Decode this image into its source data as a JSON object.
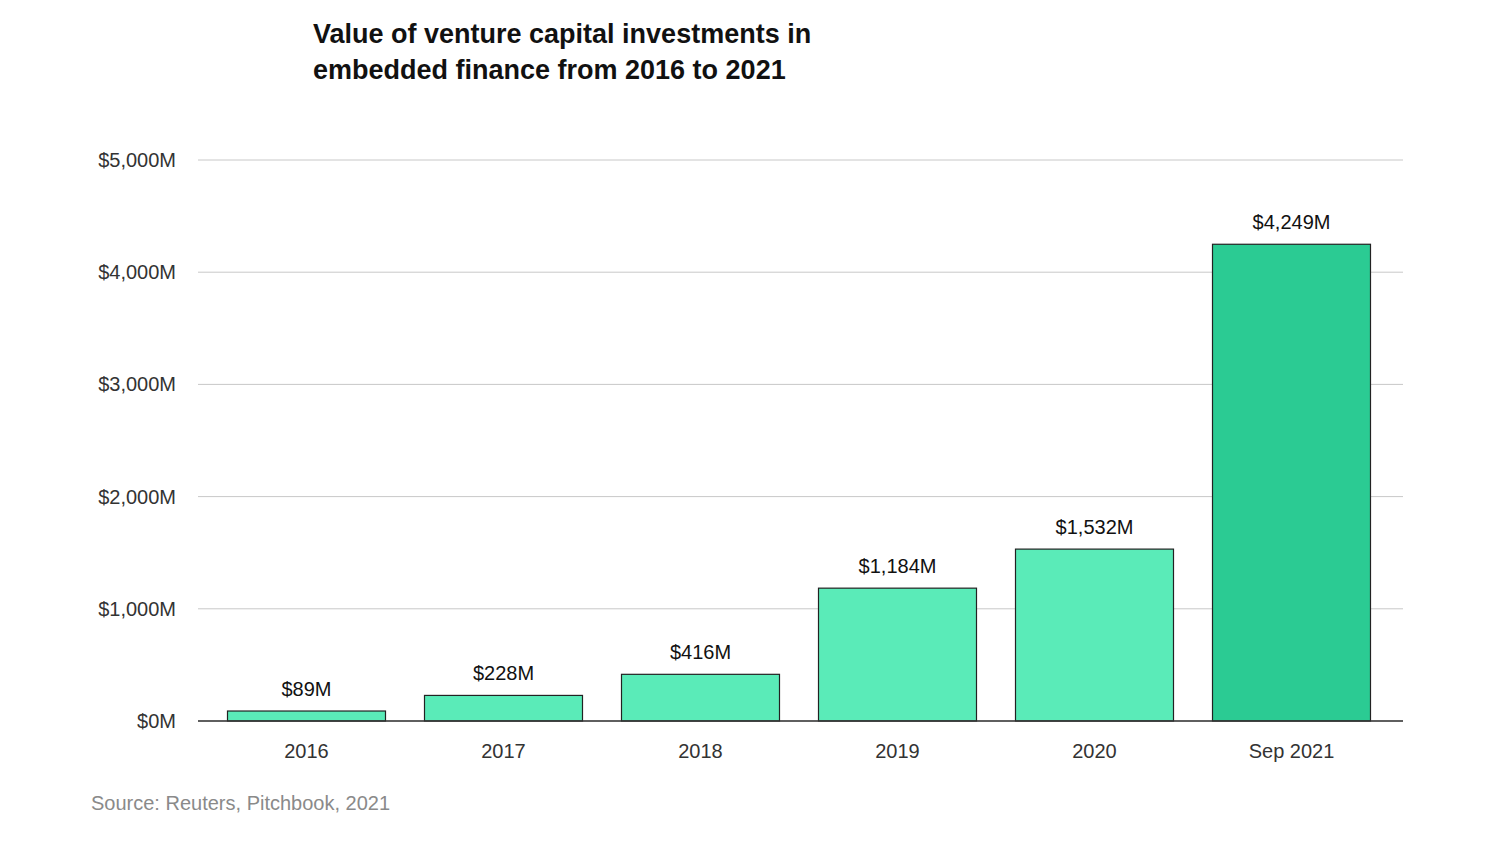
{
  "chart_data": {
    "type": "bar",
    "title": "Value of venture capital investments in embedded finance from 2016 to 2021",
    "source": "Source: Reuters, Pitchbook, 2021",
    "categories": [
      "2016",
      "2017",
      "2018",
      "2019",
      "2020",
      "Sep 2021"
    ],
    "values": [
      89,
      228,
      416,
      1184,
      1532,
      4249
    ],
    "value_labels": [
      "$89M",
      "$228M",
      "$416M",
      "$1,184M",
      "$1,532M",
      "$4,249M"
    ],
    "colors": [
      "#5aebb8",
      "#5aebb8",
      "#5aebb8",
      "#5aebb8",
      "#5aebb8",
      "#2bcb93"
    ],
    "ylim": [
      0,
      5000
    ],
    "yticks": [
      {
        "value": 0,
        "label": "$0M"
      },
      {
        "value": 1000,
        "label": "$1,000M"
      },
      {
        "value": 2000,
        "label": "$2,000M"
      },
      {
        "value": 3000,
        "label": "$3,000M"
      },
      {
        "value": 4000,
        "label": "$4,000M"
      },
      {
        "value": 5000,
        "label": "$5,000M"
      }
    ],
    "grid": true,
    "data_labels": true
  }
}
